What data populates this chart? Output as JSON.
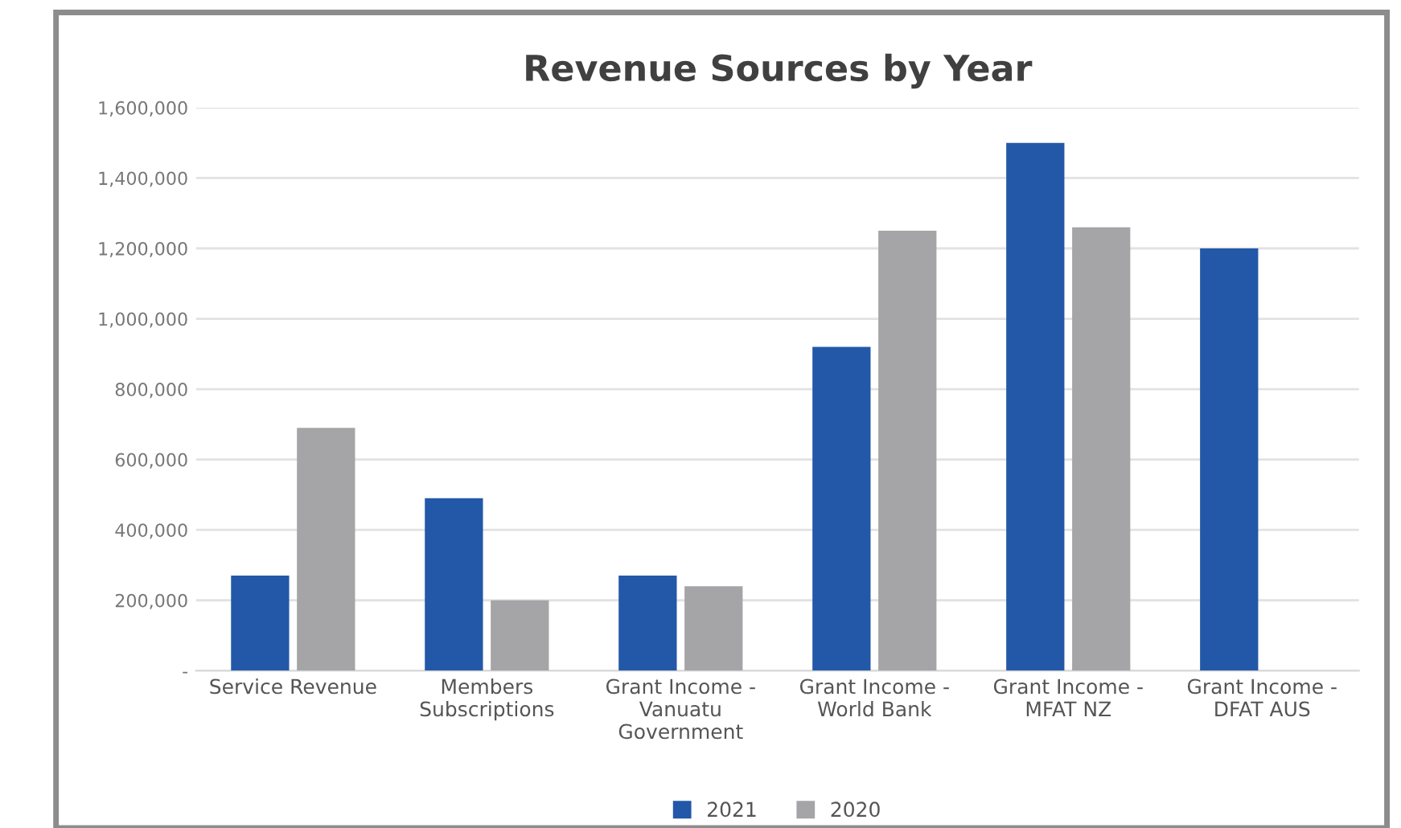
{
  "chart_data": {
    "type": "bar",
    "title": "Revenue Sources by Year",
    "categories": [
      "Service Revenue",
      "Members Subscriptions",
      "Grant Income - Vanuatu Government",
      "Grant Income - World Bank",
      "Grant Income - MFAT NZ",
      "Grant Income - DFAT AUS"
    ],
    "series": [
      {
        "name": "2021",
        "color": "#2358a8",
        "values": [
          270000,
          490000,
          270000,
          920000,
          1500000,
          1200000
        ]
      },
      {
        "name": "2020",
        "color": "#a5a5a8",
        "values": [
          690000,
          200000,
          240000,
          1250000,
          1260000,
          null
        ]
      }
    ],
    "ylim": [
      0,
      1600000
    ],
    "yticks": [
      {
        "value": 0,
        "label": "-"
      },
      {
        "value": 200000,
        "label": "200,000"
      },
      {
        "value": 400000,
        "label": "400,000"
      },
      {
        "value": 600000,
        "label": "600,000"
      },
      {
        "value": 800000,
        "label": "800,000"
      },
      {
        "value": 1000000,
        "label": "1,000,000"
      },
      {
        "value": 1200000,
        "label": "1,200,000"
      },
      {
        "value": 1400000,
        "label": "1,400,000"
      },
      {
        "value": 1600000,
        "label": "1,600,000"
      }
    ],
    "grid": "y",
    "legend": "bottom"
  }
}
